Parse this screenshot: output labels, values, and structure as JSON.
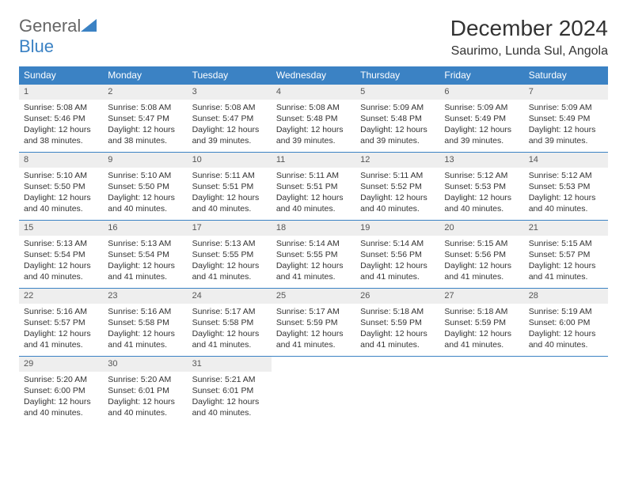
{
  "logo": {
    "text1": "General",
    "text2": "Blue"
  },
  "title": "December 2024",
  "location": "Saurimo, Lunda Sul, Angola",
  "columns": [
    "Sunday",
    "Monday",
    "Tuesday",
    "Wednesday",
    "Thursday",
    "Friday",
    "Saturday"
  ],
  "colors": {
    "header_bg": "#3b82c4",
    "header_fg": "#ffffff",
    "daynum_bg": "#eeeeee",
    "border": "#3b82c4",
    "text": "#333333"
  },
  "weeks": [
    [
      {
        "n": "1",
        "sr": "5:08 AM",
        "ss": "5:46 PM",
        "dl": "12 hours and 38 minutes."
      },
      {
        "n": "2",
        "sr": "5:08 AM",
        "ss": "5:47 PM",
        "dl": "12 hours and 38 minutes."
      },
      {
        "n": "3",
        "sr": "5:08 AM",
        "ss": "5:47 PM",
        "dl": "12 hours and 39 minutes."
      },
      {
        "n": "4",
        "sr": "5:08 AM",
        "ss": "5:48 PM",
        "dl": "12 hours and 39 minutes."
      },
      {
        "n": "5",
        "sr": "5:09 AM",
        "ss": "5:48 PM",
        "dl": "12 hours and 39 minutes."
      },
      {
        "n": "6",
        "sr": "5:09 AM",
        "ss": "5:49 PM",
        "dl": "12 hours and 39 minutes."
      },
      {
        "n": "7",
        "sr": "5:09 AM",
        "ss": "5:49 PM",
        "dl": "12 hours and 39 minutes."
      }
    ],
    [
      {
        "n": "8",
        "sr": "5:10 AM",
        "ss": "5:50 PM",
        "dl": "12 hours and 40 minutes."
      },
      {
        "n": "9",
        "sr": "5:10 AM",
        "ss": "5:50 PM",
        "dl": "12 hours and 40 minutes."
      },
      {
        "n": "10",
        "sr": "5:11 AM",
        "ss": "5:51 PM",
        "dl": "12 hours and 40 minutes."
      },
      {
        "n": "11",
        "sr": "5:11 AM",
        "ss": "5:51 PM",
        "dl": "12 hours and 40 minutes."
      },
      {
        "n": "12",
        "sr": "5:11 AM",
        "ss": "5:52 PM",
        "dl": "12 hours and 40 minutes."
      },
      {
        "n": "13",
        "sr": "5:12 AM",
        "ss": "5:53 PM",
        "dl": "12 hours and 40 minutes."
      },
      {
        "n": "14",
        "sr": "5:12 AM",
        "ss": "5:53 PM",
        "dl": "12 hours and 40 minutes."
      }
    ],
    [
      {
        "n": "15",
        "sr": "5:13 AM",
        "ss": "5:54 PM",
        "dl": "12 hours and 40 minutes."
      },
      {
        "n": "16",
        "sr": "5:13 AM",
        "ss": "5:54 PM",
        "dl": "12 hours and 41 minutes."
      },
      {
        "n": "17",
        "sr": "5:13 AM",
        "ss": "5:55 PM",
        "dl": "12 hours and 41 minutes."
      },
      {
        "n": "18",
        "sr": "5:14 AM",
        "ss": "5:55 PM",
        "dl": "12 hours and 41 minutes."
      },
      {
        "n": "19",
        "sr": "5:14 AM",
        "ss": "5:56 PM",
        "dl": "12 hours and 41 minutes."
      },
      {
        "n": "20",
        "sr": "5:15 AM",
        "ss": "5:56 PM",
        "dl": "12 hours and 41 minutes."
      },
      {
        "n": "21",
        "sr": "5:15 AM",
        "ss": "5:57 PM",
        "dl": "12 hours and 41 minutes."
      }
    ],
    [
      {
        "n": "22",
        "sr": "5:16 AM",
        "ss": "5:57 PM",
        "dl": "12 hours and 41 minutes."
      },
      {
        "n": "23",
        "sr": "5:16 AM",
        "ss": "5:58 PM",
        "dl": "12 hours and 41 minutes."
      },
      {
        "n": "24",
        "sr": "5:17 AM",
        "ss": "5:58 PM",
        "dl": "12 hours and 41 minutes."
      },
      {
        "n": "25",
        "sr": "5:17 AM",
        "ss": "5:59 PM",
        "dl": "12 hours and 41 minutes."
      },
      {
        "n": "26",
        "sr": "5:18 AM",
        "ss": "5:59 PM",
        "dl": "12 hours and 41 minutes."
      },
      {
        "n": "27",
        "sr": "5:18 AM",
        "ss": "5:59 PM",
        "dl": "12 hours and 41 minutes."
      },
      {
        "n": "28",
        "sr": "5:19 AM",
        "ss": "6:00 PM",
        "dl": "12 hours and 40 minutes."
      }
    ],
    [
      {
        "n": "29",
        "sr": "5:20 AM",
        "ss": "6:00 PM",
        "dl": "12 hours and 40 minutes."
      },
      {
        "n": "30",
        "sr": "5:20 AM",
        "ss": "6:01 PM",
        "dl": "12 hours and 40 minutes."
      },
      {
        "n": "31",
        "sr": "5:21 AM",
        "ss": "6:01 PM",
        "dl": "12 hours and 40 minutes."
      },
      null,
      null,
      null,
      null
    ]
  ],
  "labels": {
    "sunrise": "Sunrise:",
    "sunset": "Sunset:",
    "daylight": "Daylight:"
  }
}
